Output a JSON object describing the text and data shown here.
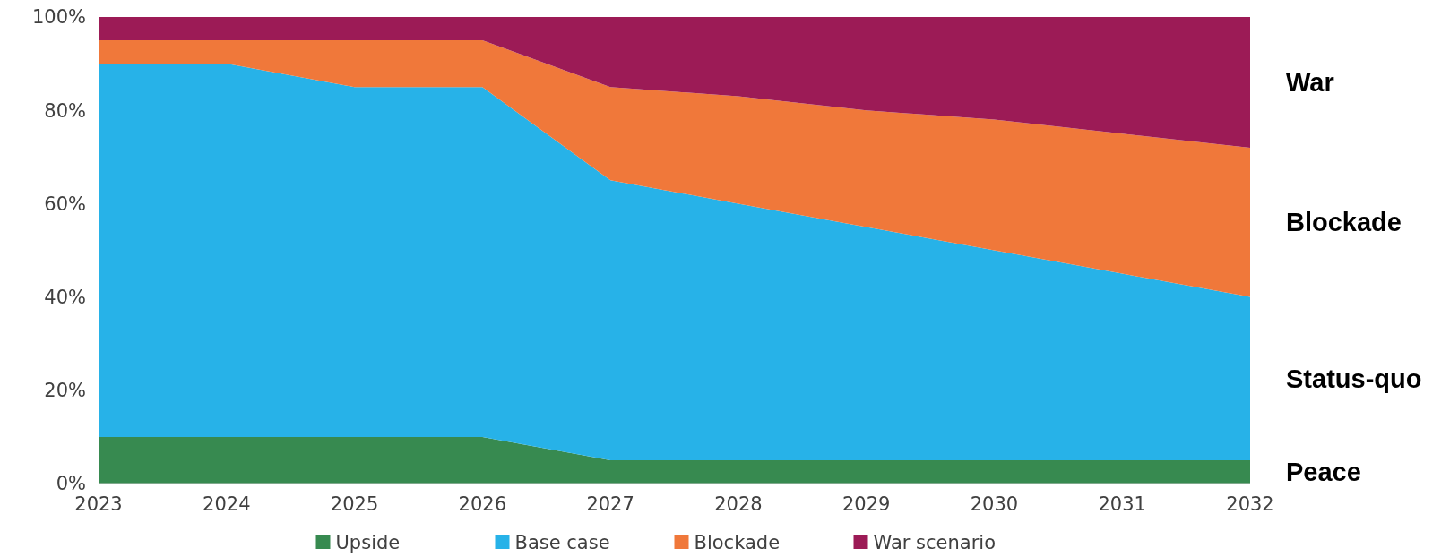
{
  "chart_data": {
    "type": "area",
    "stacked": true,
    "x": [
      2023,
      2024,
      2025,
      2026,
      2027,
      2028,
      2029,
      2030,
      2031,
      2032
    ],
    "xlim": [
      2023,
      2032
    ],
    "xticks": [
      2023,
      2024,
      2025,
      2026,
      2027,
      2028,
      2029,
      2030,
      2031,
      2032
    ],
    "ylim": [
      0,
      100
    ],
    "yticks": [
      {
        "value": 0,
        "label": "0%"
      },
      {
        "value": 20,
        "label": "20%"
      },
      {
        "value": 40,
        "label": "40%"
      },
      {
        "value": 60,
        "label": "60%"
      },
      {
        "value": 80,
        "label": "80%"
      },
      {
        "value": 100,
        "label": "100%"
      }
    ],
    "grid": false,
    "legend": "bottom",
    "series": [
      {
        "name": "Upside",
        "color": "#378a50",
        "values": [
          10,
          10,
          10,
          10,
          5,
          5,
          5,
          5,
          5,
          5
        ]
      },
      {
        "name": "Base case",
        "color": "#27b2e8",
        "values": [
          80,
          80,
          75,
          75,
          60,
          55,
          50,
          45,
          40,
          35
        ]
      },
      {
        "name": "Blockade",
        "color": "#f0783a",
        "values": [
          5,
          5,
          10,
          10,
          20,
          23,
          25,
          28,
          30,
          32
        ]
      },
      {
        "name": "War scenario",
        "color": "#9c1b56",
        "values": [
          5,
          5,
          5,
          5,
          15,
          17,
          20,
          22,
          25,
          28
        ]
      }
    ],
    "annotations": [
      "War",
      "Blockade",
      "Status-quo",
      "Peace"
    ]
  }
}
